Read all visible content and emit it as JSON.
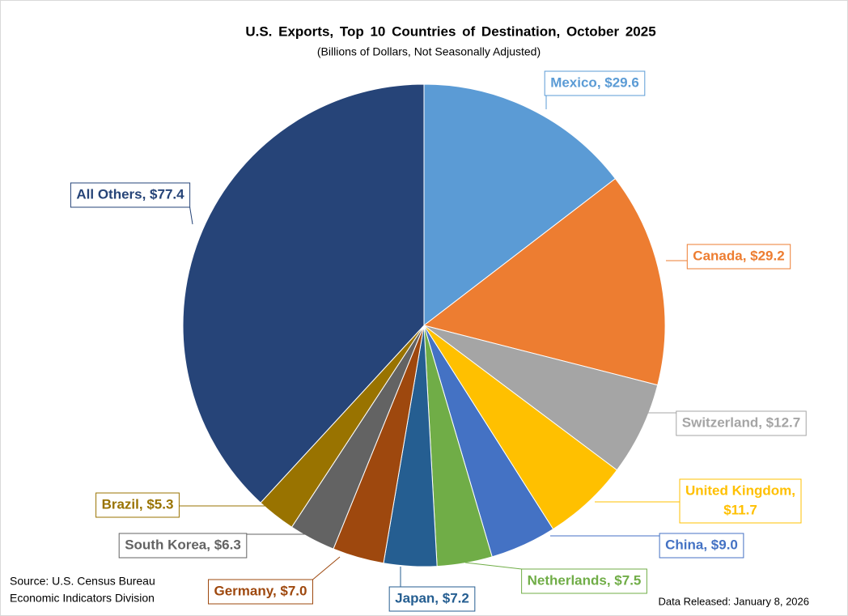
{
  "chart_data": {
    "type": "pie",
    "title": "U.S. Exports, Top 10 Countries of Destination, October 2025",
    "subtitle": "(Billions of Dollars, Not Seasonally Adjusted)",
    "values": [
      29.6,
      29.2,
      12.7,
      11.7,
      9.0,
      7.5,
      7.2,
      7.0,
      6.3,
      5.3,
      77.4
    ],
    "value_labels": [
      "Mexico, $29.6",
      "Canada, $29.2",
      "Switzerland, $12.7",
      [
        "United Kingdom,",
        "$11.7"
      ],
      "China, $9.0",
      "Netherlands, $7.5",
      "Japan, $7.2",
      "Germany, $7.0",
      "South Korea, $6.3",
      "Brazil, $5.3",
      "All Others, $77.4"
    ],
    "colors": [
      "#5b9bd5",
      "#ed7d31",
      "#a5a5a5",
      "#ffc000",
      "#4472c4",
      "#70ad47",
      "#255e91",
      "#9e480e",
      "#636363",
      "#997300",
      "#264478"
    ],
    "source": [
      "Source: U.S. Census Bureau",
      "Economic Indicators Division"
    ],
    "note": "Data Released: January 8, 2026"
  }
}
